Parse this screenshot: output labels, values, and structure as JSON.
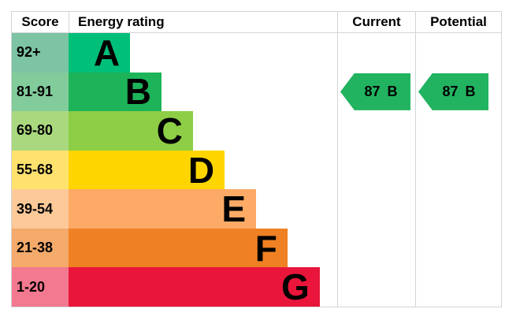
{
  "header": {
    "score": "Score",
    "energy_rating": "Energy rating",
    "current": "Current",
    "potential": "Potential"
  },
  "bands": [
    {
      "score": "92+",
      "letter": "A",
      "bar_color": "#00bf78",
      "score_color": "#7cc4a3",
      "width_pct": 22.9
    },
    {
      "score": "81-91",
      "letter": "B",
      "bar_color": "#1db459",
      "score_color": "#82cb9b",
      "width_pct": 34.6
    },
    {
      "score": "69-80",
      "letter": "C",
      "bar_color": "#8dce46",
      "score_color": "#aad87f",
      "width_pct": 46.3
    },
    {
      "score": "55-68",
      "letter": "D",
      "bar_color": "#ffd500",
      "score_color": "#ffe26e",
      "width_pct": 58.1
    },
    {
      "score": "39-54",
      "letter": "E",
      "bar_color": "#fcaa65",
      "score_color": "#fdc998",
      "width_pct": 69.8
    },
    {
      "score": "21-38",
      "letter": "F",
      "bar_color": "#ef8023",
      "score_color": "#f4aa6a",
      "width_pct": 81.5
    },
    {
      "score": "1-20",
      "letter": "G",
      "bar_color": "#e9153b",
      "score_color": "#f2798f",
      "width_pct": 93.5
    }
  ],
  "current_rating": {
    "value": "87",
    "band": "B",
    "color": "#22b360",
    "row_index": 1
  },
  "potential_rating": {
    "value": "87",
    "band": "B",
    "color": "#22b360",
    "row_index": 1
  },
  "grid_color": "#d2d4d6",
  "chart_data": {
    "type": "bar",
    "title": "EPC energy efficiency rating chart",
    "columns": [
      "Score",
      "Energy rating",
      "Current",
      "Potential"
    ],
    "categories": [
      "A",
      "B",
      "C",
      "D",
      "E",
      "F",
      "G"
    ],
    "score_ranges": [
      "92+",
      "81-91",
      "69-80",
      "55-68",
      "39-54",
      "21-38",
      "1-20"
    ],
    "bar_width_pct": [
      22.9,
      34.6,
      46.3,
      58.1,
      69.8,
      81.5,
      93.5
    ],
    "band_colors": [
      "#00bf78",
      "#1db459",
      "#8dce46",
      "#ffd500",
      "#fcaa65",
      "#ef8023",
      "#e9153b"
    ],
    "current": {
      "score": 87,
      "band": "B"
    },
    "potential": {
      "score": 87,
      "band": "B"
    },
    "legend_position": "none",
    "grid": "column-separators-only"
  }
}
